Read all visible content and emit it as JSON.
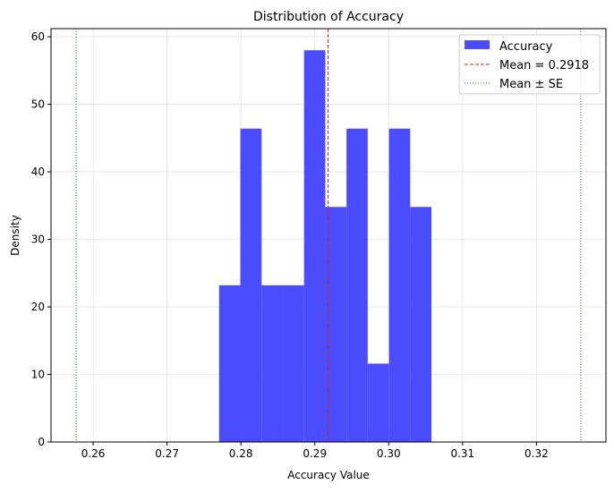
{
  "chart_data": {
    "type": "bar",
    "title": "Distribution of Accuracy",
    "xlabel": "Accuracy Value",
    "ylabel": "Density",
    "xlim": [
      0.2543,
      0.3294
    ],
    "ylim": [
      0,
      61.2
    ],
    "xticks": [
      "0.26",
      "0.27",
      "0.28",
      "0.29",
      "0.30",
      "0.31",
      "0.32"
    ],
    "xtick_values": [
      0.26,
      0.27,
      0.28,
      0.29,
      0.3,
      0.31,
      0.32
    ],
    "yticks": [
      "0",
      "10",
      "20",
      "30",
      "40",
      "50",
      "60"
    ],
    "ytick_values": [
      0,
      10,
      20,
      30,
      40,
      50,
      60
    ],
    "grid": true,
    "legend_position": "top-right",
    "bin_edges": [
      0.27705,
      0.27992,
      0.2828,
      0.28567,
      0.28854,
      0.29142,
      0.29429,
      0.29716,
      0.30004,
      0.30291,
      0.30578
    ],
    "values": [
      23.2,
      46.4,
      23.2,
      23.2,
      58.0,
      34.8,
      46.4,
      11.6,
      46.4,
      34.8
    ],
    "series_name": "Accuracy",
    "bar_color": "#4b4bff",
    "mean": {
      "label": "Mean = 0.2918",
      "value": 0.2918,
      "color": "#d62020"
    },
    "se": {
      "label": "Mean ± SE",
      "lower": 0.2577,
      "upper": 0.326,
      "color": "#008000"
    }
  }
}
